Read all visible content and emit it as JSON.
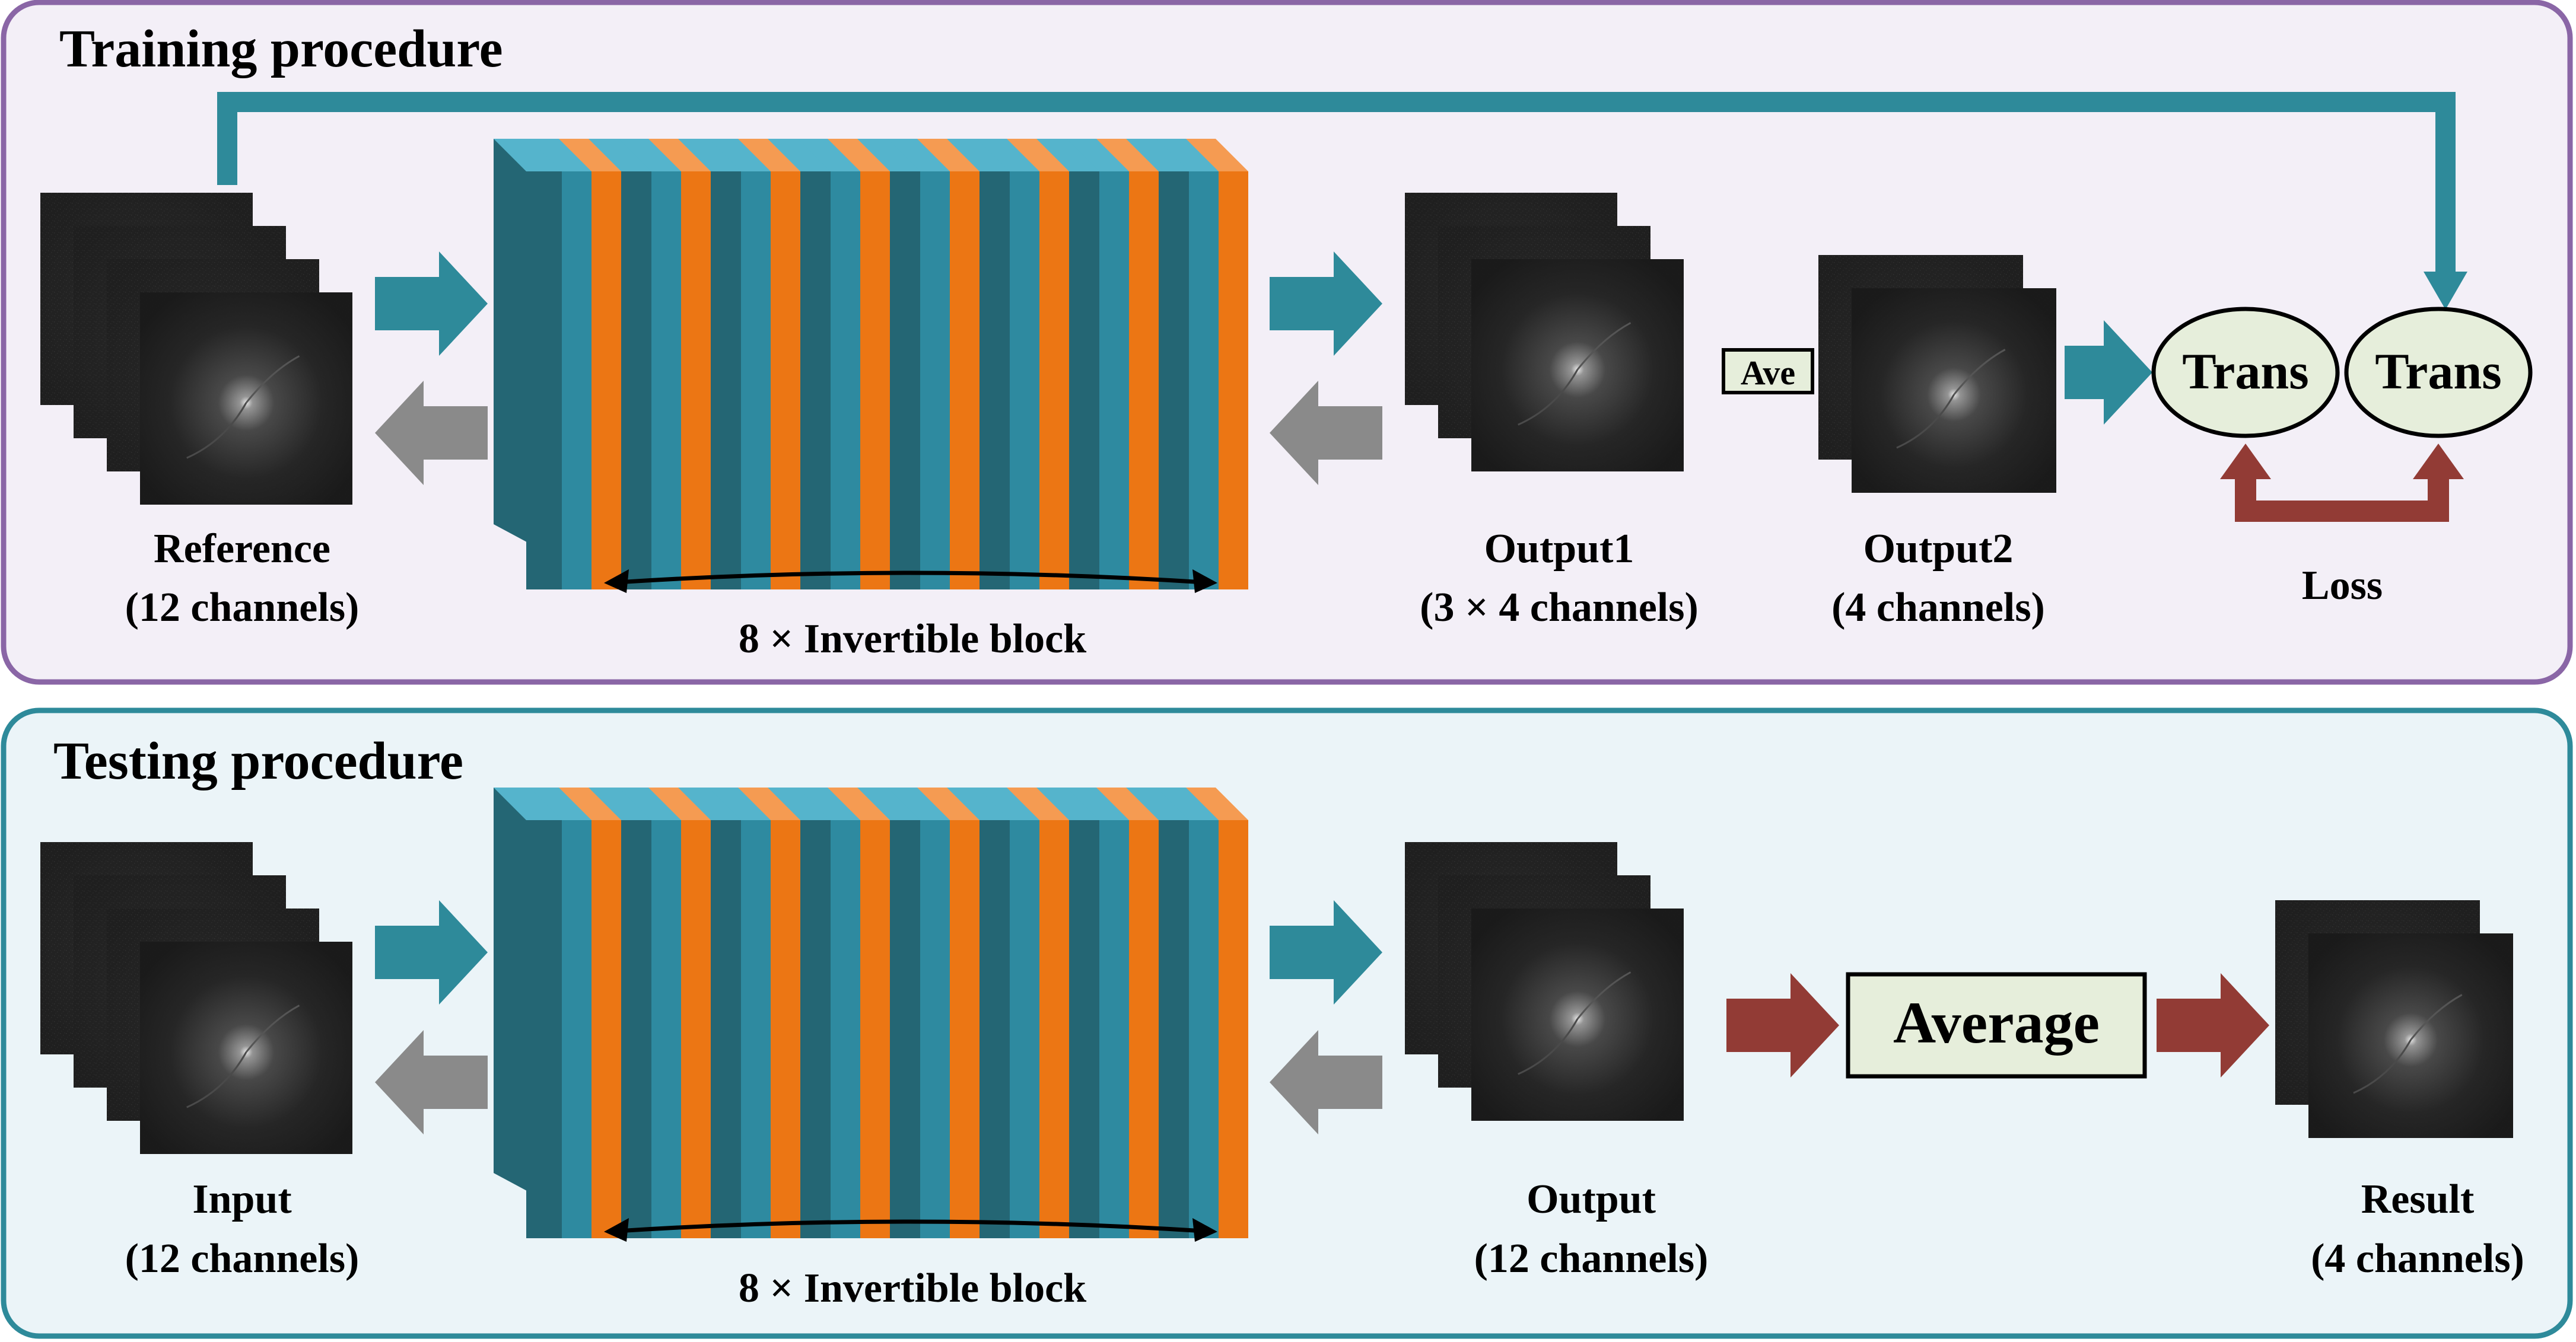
{
  "colors": {
    "training_panel_fill": "#f3eff7",
    "training_panel_stroke": "#8a66a6",
    "testing_panel_fill": "#ebf4f8",
    "testing_panel_stroke": "#2e8a9a",
    "teal_arrow": "#2e8a9a",
    "gray_arrow": "#8a8a8a",
    "red_arrow": "#923b35",
    "block_dark_teal": "#246674",
    "block_teal": "#2e8aa0",
    "block_light_teal": "#55b4cc",
    "block_orange": "#ec7614",
    "block_light_orange": "#f59b52",
    "box_fill": "#e6eedb"
  },
  "training": {
    "title": "Training procedure",
    "reference_label": "Reference",
    "reference_channels": "(12 channels)",
    "block_label": "8 × Invertible block",
    "output1_label": "Output1",
    "output1_channels": "(3 × 4 channels)",
    "ave_label": "Ave",
    "output2_label": "Output2",
    "output2_channels": "(4 channels)",
    "trans1_label": "Trans",
    "trans2_label": "Trans",
    "loss_label": "Loss"
  },
  "testing": {
    "title": "Testing procedure",
    "input_label": "Input",
    "input_channels": "(12 channels)",
    "block_label": "8 × Invertible block",
    "output_label": "Output",
    "output_channels": "(12 channels)",
    "average_label": "Average",
    "result_label": "Result",
    "result_channels": "(4 channels)"
  },
  "invertible_block_count": 8
}
